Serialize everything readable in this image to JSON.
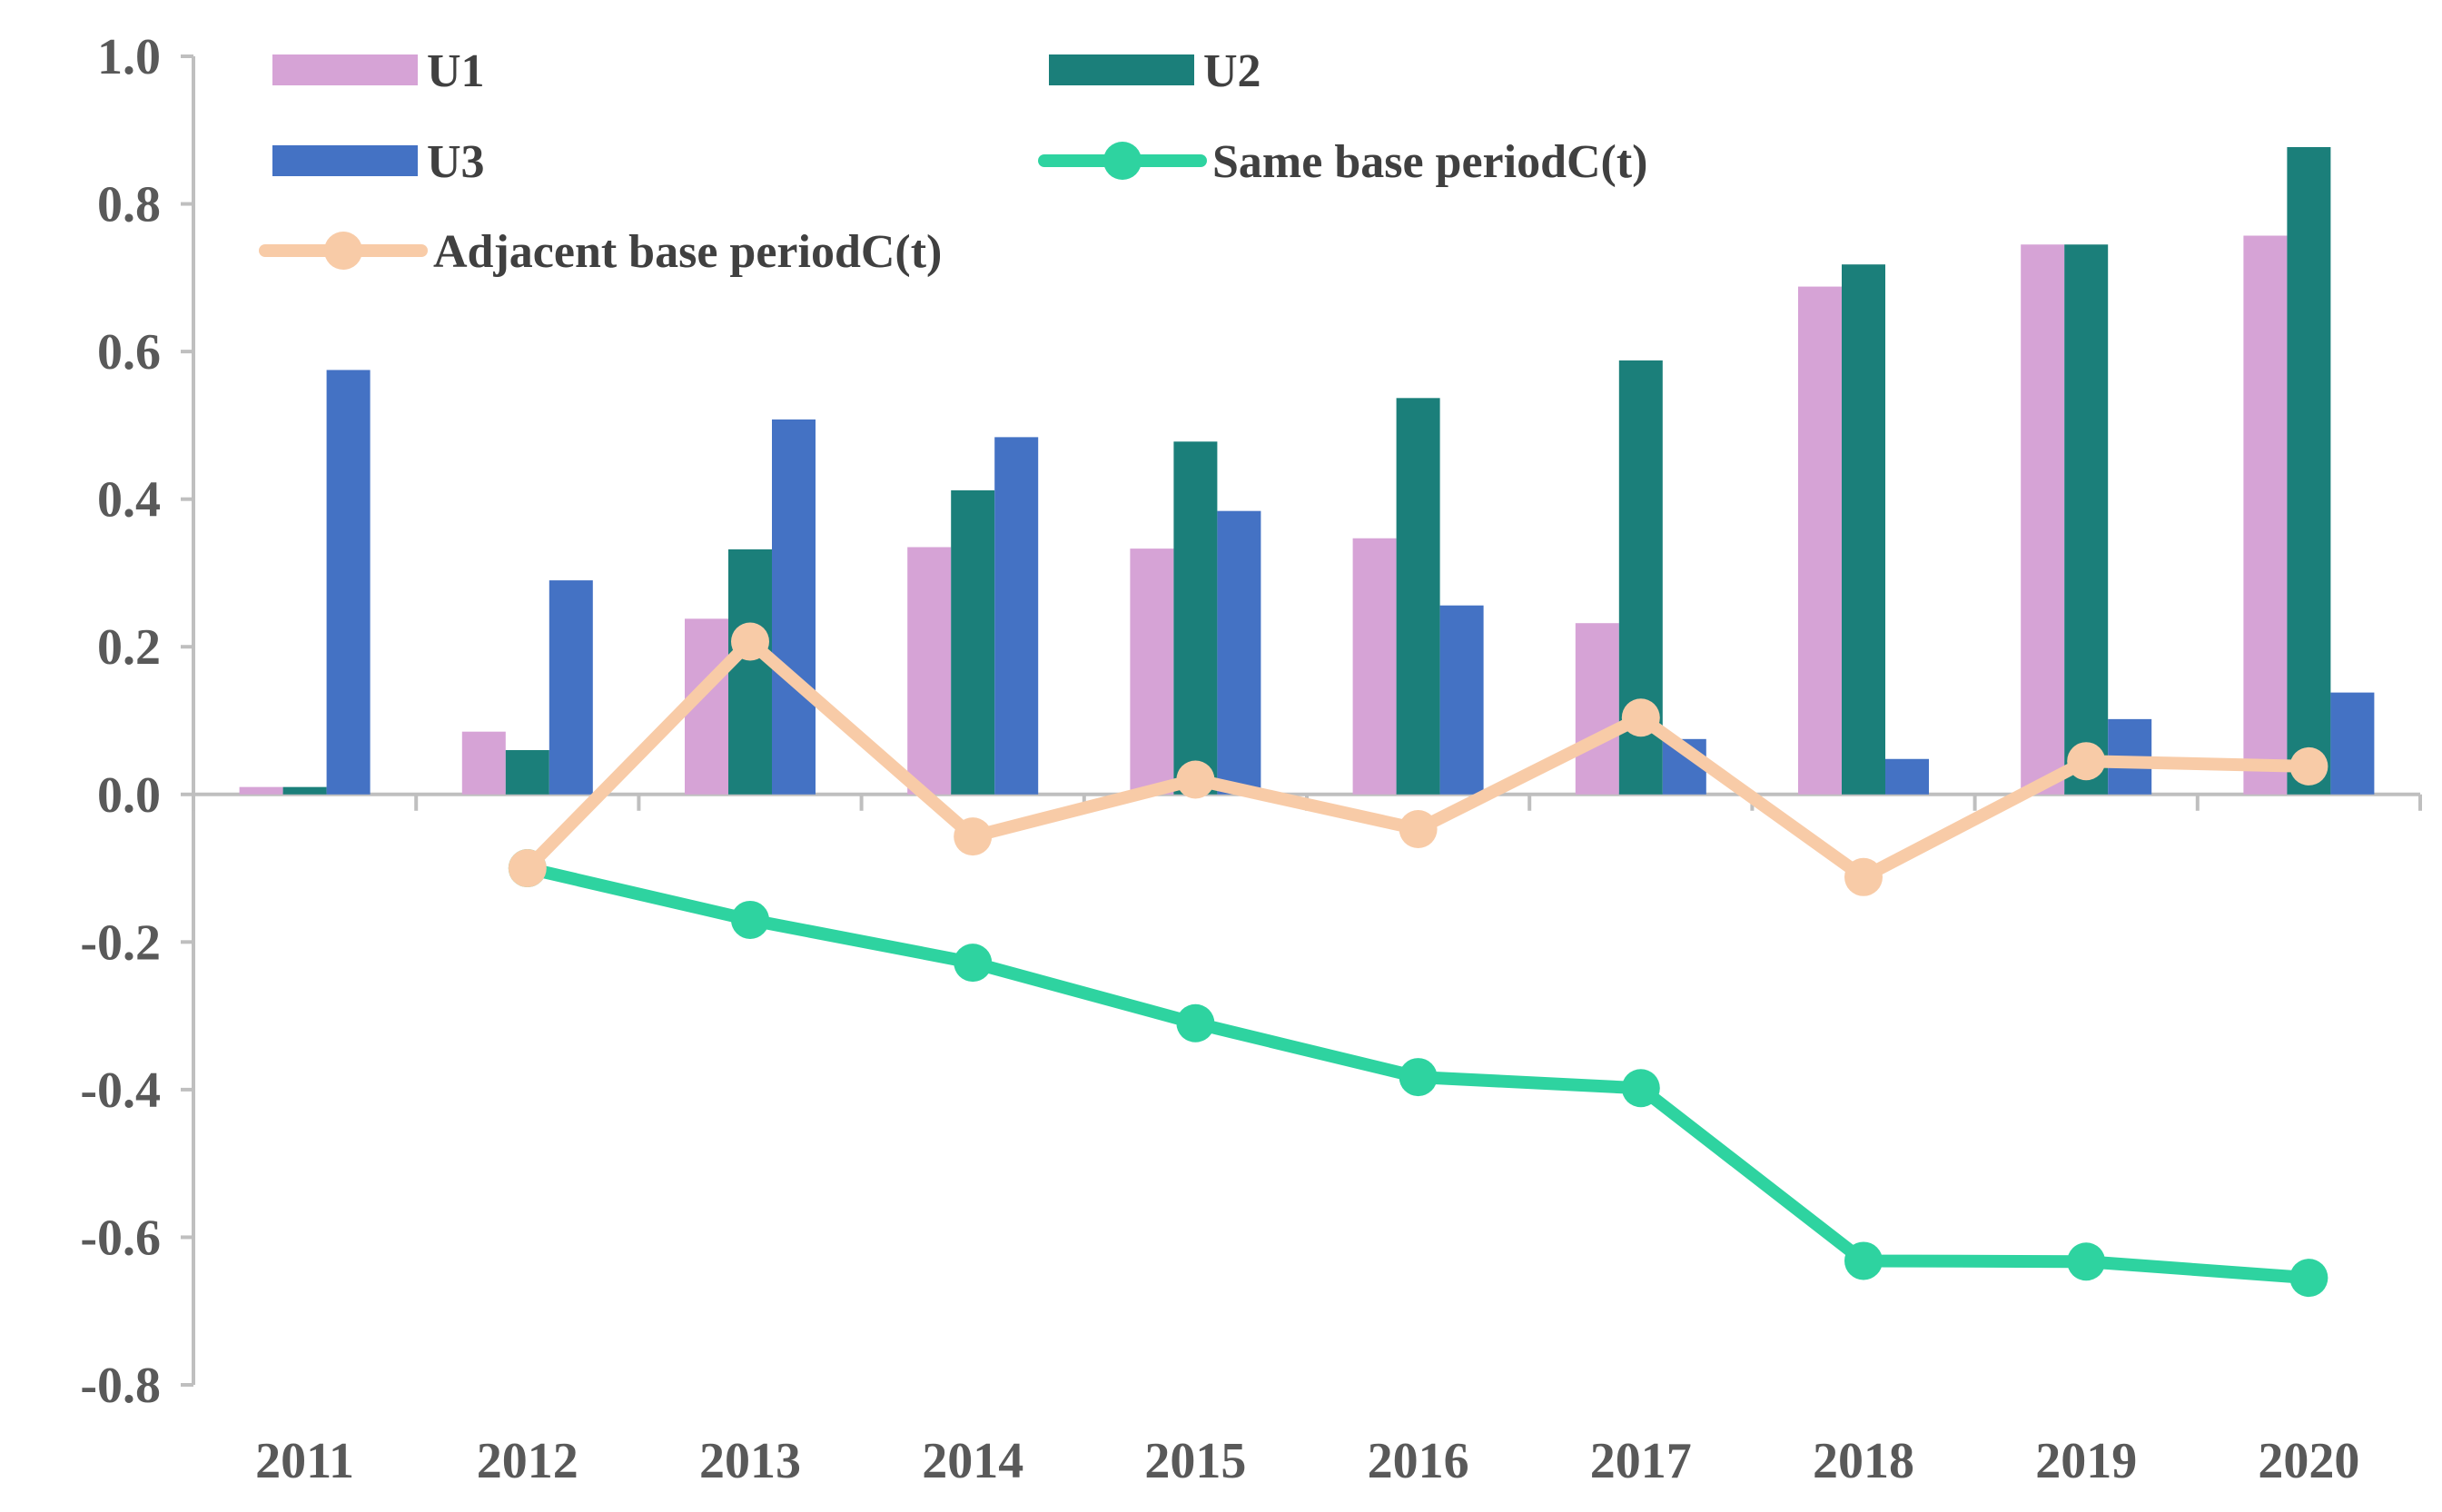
{
  "chart_data": {
    "type": "bar",
    "categories": [
      "2011",
      "2012",
      "2013",
      "2014",
      "2015",
      "2016",
      "2017",
      "2018",
      "2019",
      "2020"
    ],
    "bar_series": [
      {
        "name": "U1",
        "color": "#d6a3d6",
        "values": [
          0.01,
          0.085,
          0.238,
          0.335,
          0.333,
          0.347,
          0.232,
          0.688,
          0.745,
          0.757
        ]
      },
      {
        "name": "U2",
        "color": "#1b7f7a",
        "values": [
          0.01,
          0.06,
          0.332,
          0.412,
          0.478,
          0.537,
          0.588,
          0.718,
          0.745,
          0.877
        ]
      },
      {
        "name": "U3",
        "color": "#4472c4",
        "values": [
          0.575,
          0.29,
          0.508,
          0.484,
          0.384,
          0.256,
          0.075,
          0.048,
          0.102,
          0.138
        ]
      }
    ],
    "line_series": [
      {
        "name": "Same base periodC(t)",
        "color": "#2ed3a0",
        "values": [
          null,
          -0.1,
          -0.17,
          -0.228,
          -0.31,
          -0.383,
          -0.398,
          -0.632,
          -0.633,
          -0.655
        ]
      },
      {
        "name": "Adjacent base periodC(t)",
        "color": "#f8cba7",
        "values": [
          null,
          -0.1,
          0.207,
          -0.057,
          0.02,
          -0.047,
          0.104,
          -0.112,
          0.045,
          0.038
        ]
      }
    ],
    "y_ticks": [
      "1.0",
      "0.8",
      "0.6",
      "0.4",
      "0.2",
      "0.0",
      "-0.2",
      "-0.4",
      "-0.6",
      "-0.8"
    ],
    "ylim": [
      -0.8,
      1.0
    ],
    "title": "",
    "xlabel": "",
    "ylabel": "",
    "grid": false,
    "legend": "top-left"
  }
}
